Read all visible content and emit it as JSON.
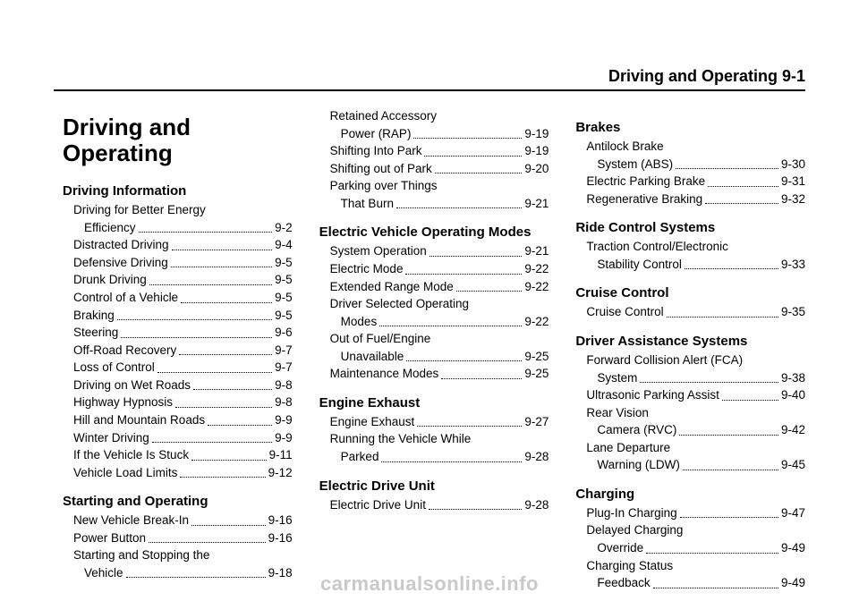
{
  "header": "Driving and Operating    9-1",
  "chapter_title": "Driving and Operating",
  "watermark": "carmanualsonline.info",
  "columns": [
    {
      "has_chapter_title": true,
      "sections": [
        {
          "title": "Driving Information",
          "entries": [
            {
              "lines": [
                "Driving for Better Energy",
                "Efficiency"
              ],
              "page": "9-2"
            },
            {
              "lines": [
                "Distracted Driving"
              ],
              "page": "9-4"
            },
            {
              "lines": [
                "Defensive Driving"
              ],
              "page": "9-5"
            },
            {
              "lines": [
                "Drunk Driving"
              ],
              "page": "9-5"
            },
            {
              "lines": [
                "Control of a Vehicle"
              ],
              "page": "9-5"
            },
            {
              "lines": [
                "Braking"
              ],
              "page": "9-5"
            },
            {
              "lines": [
                "Steering"
              ],
              "page": "9-6"
            },
            {
              "lines": [
                "Off-Road Recovery"
              ],
              "page": "9-7"
            },
            {
              "lines": [
                "Loss of Control"
              ],
              "page": "9-7"
            },
            {
              "lines": [
                "Driving on Wet Roads"
              ],
              "page": "9-8"
            },
            {
              "lines": [
                "Highway Hypnosis"
              ],
              "page": "9-8"
            },
            {
              "lines": [
                "Hill and Mountain Roads"
              ],
              "page": "9-9"
            },
            {
              "lines": [
                "Winter Driving"
              ],
              "page": "9-9"
            },
            {
              "lines": [
                "If the Vehicle Is Stuck"
              ],
              "page": "9-11"
            },
            {
              "lines": [
                "Vehicle Load Limits"
              ],
              "page": "9-12"
            }
          ]
        },
        {
          "title": "Starting and Operating",
          "entries": [
            {
              "lines": [
                "New Vehicle Break-In"
              ],
              "page": "9-16"
            },
            {
              "lines": [
                "Power Button"
              ],
              "page": "9-16"
            },
            {
              "lines": [
                "Starting and Stopping the",
                "Vehicle"
              ],
              "page": "9-18"
            }
          ]
        }
      ]
    },
    {
      "has_chapter_title": false,
      "sections": [
        {
          "title": null,
          "entries": [
            {
              "lines": [
                "Retained Accessory",
                "Power (RAP)"
              ],
              "page": "9-19"
            },
            {
              "lines": [
                "Shifting Into Park"
              ],
              "page": "9-19"
            },
            {
              "lines": [
                "Shifting out of Park"
              ],
              "page": "9-20"
            },
            {
              "lines": [
                "Parking over Things",
                "That Burn"
              ],
              "page": "9-21"
            }
          ]
        },
        {
          "title": "Electric Vehicle Operating Modes",
          "entries": [
            {
              "lines": [
                "System Operation"
              ],
              "page": "9-21"
            },
            {
              "lines": [
                "Electric Mode"
              ],
              "page": "9-22"
            },
            {
              "lines": [
                "Extended Range Mode"
              ],
              "page": "9-22"
            },
            {
              "lines": [
                "Driver Selected Operating",
                "Modes"
              ],
              "page": "9-22"
            },
            {
              "lines": [
                "Out of Fuel/Engine",
                "Unavailable"
              ],
              "page": "9-25"
            },
            {
              "lines": [
                "Maintenance Modes"
              ],
              "page": "9-25"
            }
          ]
        },
        {
          "title": "Engine Exhaust",
          "entries": [
            {
              "lines": [
                "Engine Exhaust"
              ],
              "page": "9-27"
            },
            {
              "lines": [
                "Running the Vehicle While",
                "Parked"
              ],
              "page": "9-28"
            }
          ]
        },
        {
          "title": "Electric Drive Unit",
          "entries": [
            {
              "lines": [
                "Electric Drive Unit"
              ],
              "page": "9-28"
            }
          ]
        }
      ]
    },
    {
      "has_chapter_title": false,
      "sections": [
        {
          "title": "Brakes",
          "entries": [
            {
              "lines": [
                "Antilock Brake",
                "System (ABS)"
              ],
              "page": "9-30"
            },
            {
              "lines": [
                "Electric Parking Brake"
              ],
              "page": "9-31"
            },
            {
              "lines": [
                "Regenerative Braking"
              ],
              "page": "9-32"
            }
          ]
        },
        {
          "title": "Ride Control Systems",
          "entries": [
            {
              "lines": [
                "Traction Control/Electronic",
                "Stability Control"
              ],
              "page": "9-33"
            }
          ]
        },
        {
          "title": "Cruise Control",
          "entries": [
            {
              "lines": [
                "Cruise Control"
              ],
              "page": "9-35"
            }
          ]
        },
        {
          "title": "Driver Assistance Systems",
          "entries": [
            {
              "lines": [
                "Forward Collision Alert (FCA)",
                "System"
              ],
              "page": "9-38"
            },
            {
              "lines": [
                "Ultrasonic Parking Assist"
              ],
              "page": "9-40"
            },
            {
              "lines": [
                "Rear Vision",
                "Camera (RVC)"
              ],
              "page": "9-42"
            },
            {
              "lines": [
                "Lane Departure",
                "Warning (LDW)"
              ],
              "page": "9-45"
            }
          ]
        },
        {
          "title": "Charging",
          "entries": [
            {
              "lines": [
                "Plug-In Charging"
              ],
              "page": "9-47"
            },
            {
              "lines": [
                "Delayed Charging",
                "Override"
              ],
              "page": "9-49"
            },
            {
              "lines": [
                "Charging Status",
                "Feedback"
              ],
              "page": "9-49"
            }
          ]
        }
      ]
    }
  ]
}
